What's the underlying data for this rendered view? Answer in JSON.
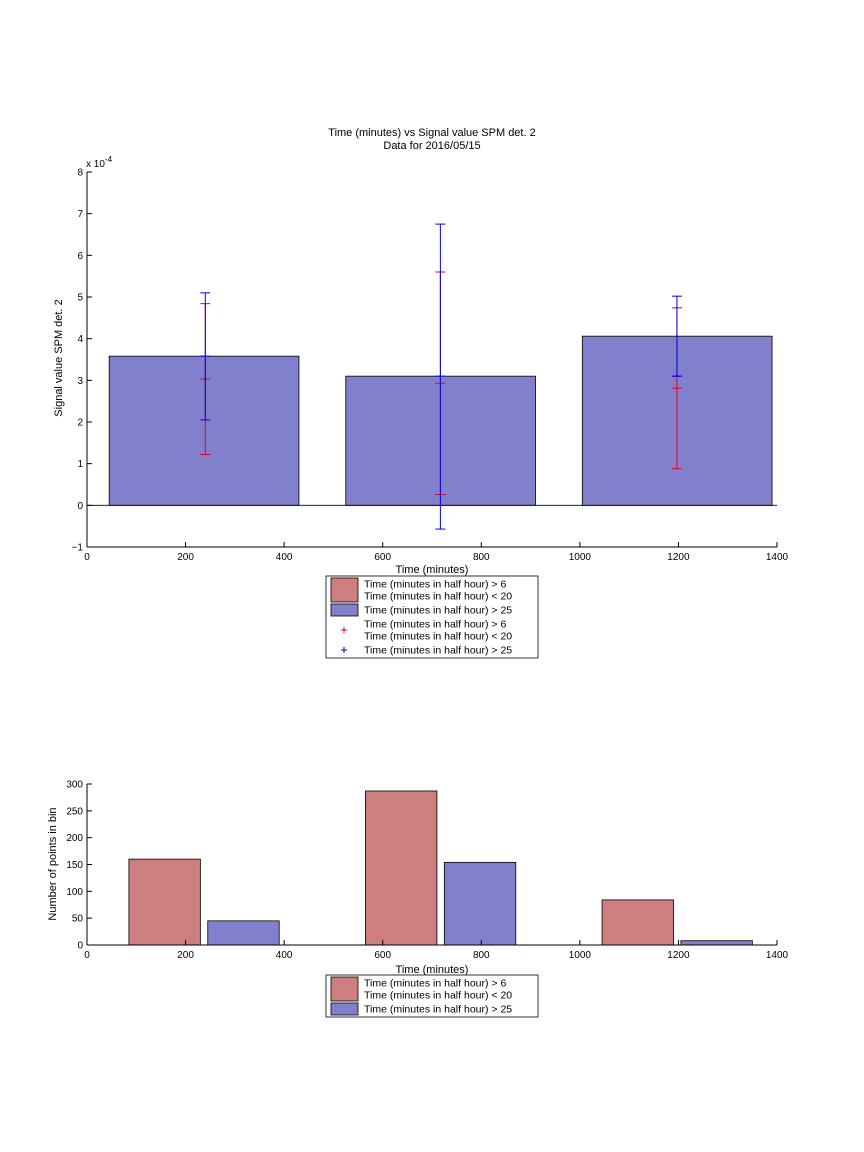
{
  "colors": {
    "red_bar": "#cd7f7f",
    "blue_bar": "#8080cd",
    "red_err": "#e6001a",
    "blue_err": "#0000e6"
  },
  "chart_data": [
    {
      "type": "bar",
      "title": "Time (minutes) vs Signal value SPM det. 2",
      "subtitle": "Data for 2016/05/15",
      "xlabel": "Time (minutes)",
      "ylabel": "Signal value SPM det. 2",
      "y_exponent_label": "x 10",
      "y_exponent_power": "-4",
      "xlim": [
        0,
        1400
      ],
      "ylim": [
        -1,
        8
      ],
      "xticks": [
        "0",
        "200",
        "400",
        "600",
        "800",
        "1000",
        "1200",
        "1400"
      ],
      "yticks": [
        "−1",
        "0",
        "1",
        "2",
        "3",
        "4",
        "5",
        "6",
        "7",
        "8"
      ],
      "grid": false,
      "legend_position": "below",
      "bars": [
        {
          "x0": 45,
          "x1": 430,
          "value": 3.58
        },
        {
          "x0": 525,
          "x1": 910,
          "value": 3.1
        },
        {
          "x0": 1005,
          "x1": 1390,
          "value": 4.06
        }
      ],
      "errorbars": [
        {
          "series": "red",
          "x": 240,
          "center": 3.03,
          "low": 1.22,
          "high": 4.84
        },
        {
          "series": "blue",
          "x": 240,
          "center": 3.58,
          "low": 2.05,
          "high": 5.1
        },
        {
          "series": "red",
          "x": 717,
          "center": 2.93,
          "low": 0.26,
          "high": 5.6
        },
        {
          "series": "blue",
          "x": 717,
          "center": 3.1,
          "low": -0.57,
          "high": 6.75
        },
        {
          "series": "red",
          "x": 1197,
          "center": 2.81,
          "low": 0.88,
          "high": 4.74
        },
        {
          "series": "blue",
          "x": 1197,
          "center": 3.1,
          "low": 3.1,
          "high": 5.02
        }
      ],
      "legend": [
        {
          "kind": "patch",
          "color": "red",
          "lines": [
            "Time (minutes in half hour) > 6",
            "Time (minutes in half hour) < 20"
          ]
        },
        {
          "kind": "patch",
          "color": "blue",
          "lines": [
            "Time (minutes in half hour) > 25"
          ]
        },
        {
          "kind": "marker",
          "color": "red",
          "lines": [
            "Time (minutes in half hour) > 6",
            "Time (minutes in half hour) < 20"
          ]
        },
        {
          "kind": "marker",
          "color": "blue",
          "lines": [
            "Time (minutes in half hour) > 25"
          ]
        }
      ]
    },
    {
      "type": "bar",
      "xlabel": "Time (minutes)",
      "ylabel": "Number of points in bin",
      "xlim": [
        0,
        1400
      ],
      "ylim": [
        0,
        300
      ],
      "xticks": [
        "0",
        "200",
        "400",
        "600",
        "800",
        "1000",
        "1200",
        "1400"
      ],
      "yticks": [
        "0",
        "50",
        "100",
        "150",
        "200",
        "250",
        "300"
      ],
      "grid": false,
      "legend_position": "below",
      "bars": [
        {
          "series": "red",
          "x0": 85,
          "x1": 230,
          "value": 160
        },
        {
          "series": "blue",
          "x0": 245,
          "x1": 390,
          "value": 45
        },
        {
          "series": "red",
          "x0": 565,
          "x1": 710,
          "value": 287
        },
        {
          "series": "blue",
          "x0": 725,
          "x1": 870,
          "value": 154
        },
        {
          "series": "red",
          "x0": 1045,
          "x1": 1190,
          "value": 84
        },
        {
          "series": "blue",
          "x0": 1205,
          "x1": 1350,
          "value": 8
        }
      ],
      "legend": [
        {
          "kind": "patch",
          "color": "red",
          "lines": [
            "Time (minutes in half hour) > 6",
            "Time (minutes in half hour) < 20"
          ]
        },
        {
          "kind": "patch",
          "color": "blue",
          "lines": [
            "Time (minutes in half hour) > 25"
          ]
        }
      ]
    }
  ]
}
